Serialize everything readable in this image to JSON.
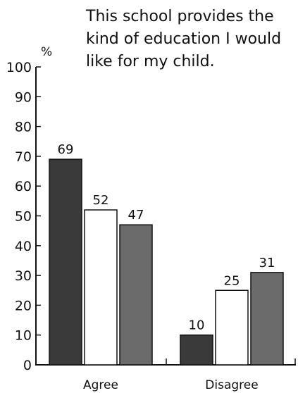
{
  "chart_data": {
    "type": "bar",
    "title_lines": [
      "This school provides the",
      "kind of education I would",
      "like for my child."
    ],
    "ylabel": "%",
    "xlabel": "",
    "ylim": [
      0,
      100
    ],
    "yticks": [
      "0",
      "10",
      "20",
      "30",
      "40",
      "50",
      "60",
      "70",
      "80",
      "90",
      "100"
    ],
    "categories": [
      "Agree",
      "Disagree"
    ],
    "series": [
      {
        "values": [
          69,
          10
        ],
        "color": "#3a3a3a"
      },
      {
        "values": [
          52,
          25
        ],
        "color": "#ffffff"
      },
      {
        "values": [
          47,
          31
        ],
        "color": "#6b6b6b"
      }
    ],
    "grid": false,
    "legend": "none"
  }
}
